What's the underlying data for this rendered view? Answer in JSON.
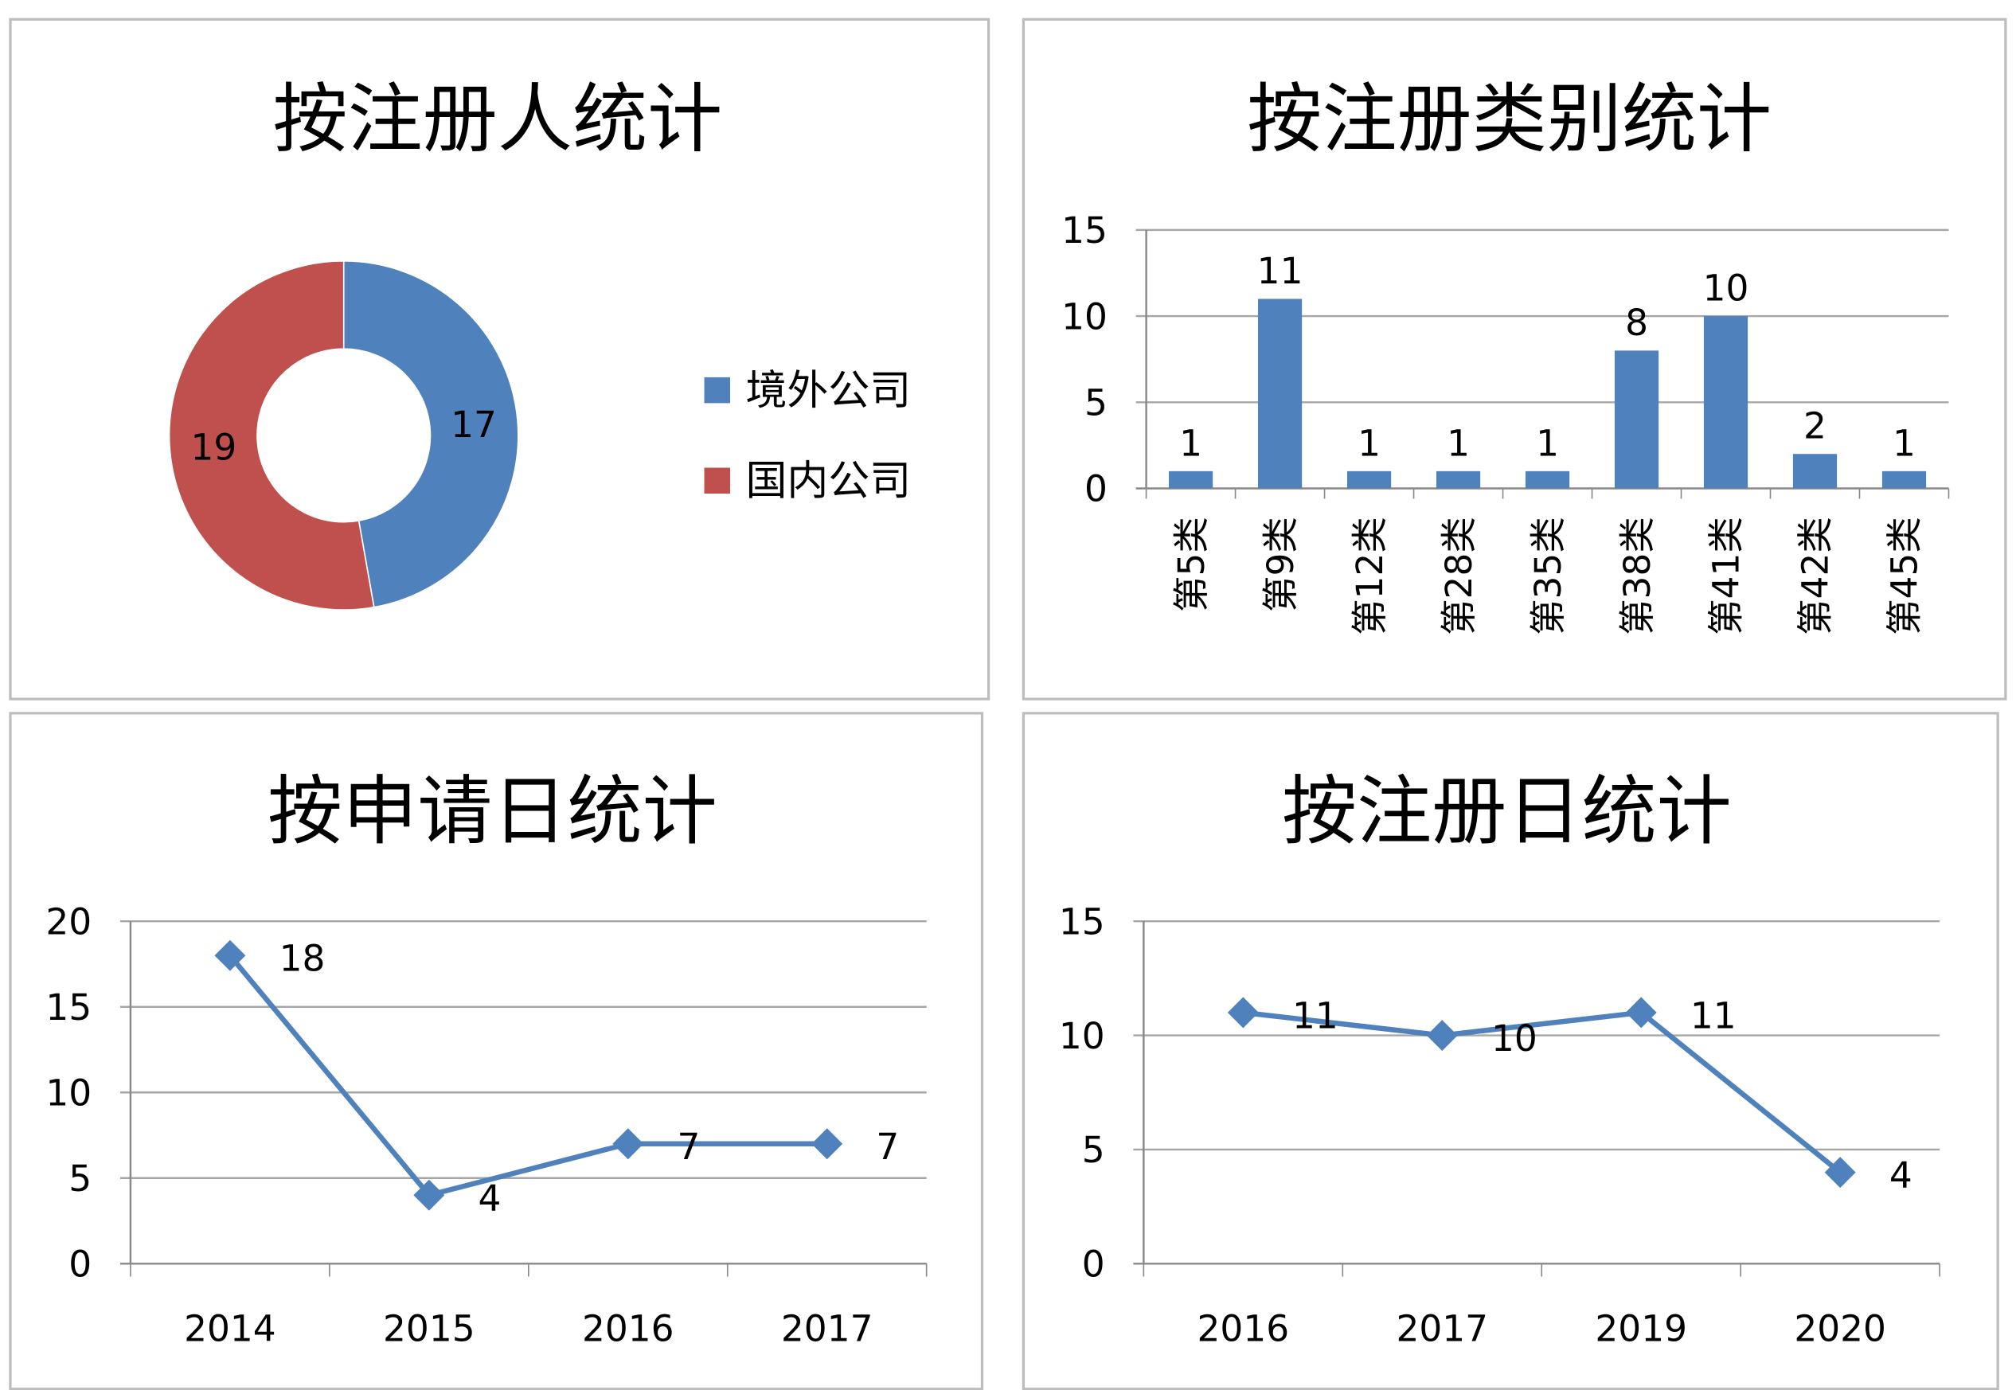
{
  "chart_data": [
    {
      "type": "pie",
      "title": "按注册人统计",
      "categories": [
        "境外公司",
        "国内公司"
      ],
      "values": [
        17,
        19
      ],
      "colors": [
        "#4f81bd",
        "#c0504d"
      ],
      "legend": "right"
    },
    {
      "type": "bar",
      "title": "按注册类别统计",
      "categories": [
        "第5类",
        "第9类",
        "第12类",
        "第28类",
        "第35类",
        "第38类",
        "第41类",
        "第42类",
        "第45类"
      ],
      "values": [
        1,
        11,
        1,
        1,
        1,
        8,
        10,
        2,
        1
      ],
      "ylim": [
        0,
        15
      ],
      "yticks": [
        0,
        5,
        10,
        15
      ],
      "color": "#4f81bd",
      "grid": true
    },
    {
      "type": "line",
      "title": "按申请日统计",
      "categories": [
        "2014",
        "2015",
        "2016",
        "2017"
      ],
      "values": [
        18,
        4,
        7,
        7
      ],
      "ylim": [
        0,
        20
      ],
      "yticks": [
        0,
        5,
        10,
        15,
        20
      ],
      "color": "#4f81bd",
      "grid": true
    },
    {
      "type": "line",
      "title": "按注册日统计",
      "categories": [
        "2016",
        "2017",
        "2019",
        "2020"
      ],
      "values": [
        11,
        10,
        11,
        4
      ],
      "ylim": [
        0,
        15
      ],
      "yticks": [
        0,
        5,
        10,
        15
      ],
      "color": "#4f81bd",
      "grid": true
    }
  ]
}
